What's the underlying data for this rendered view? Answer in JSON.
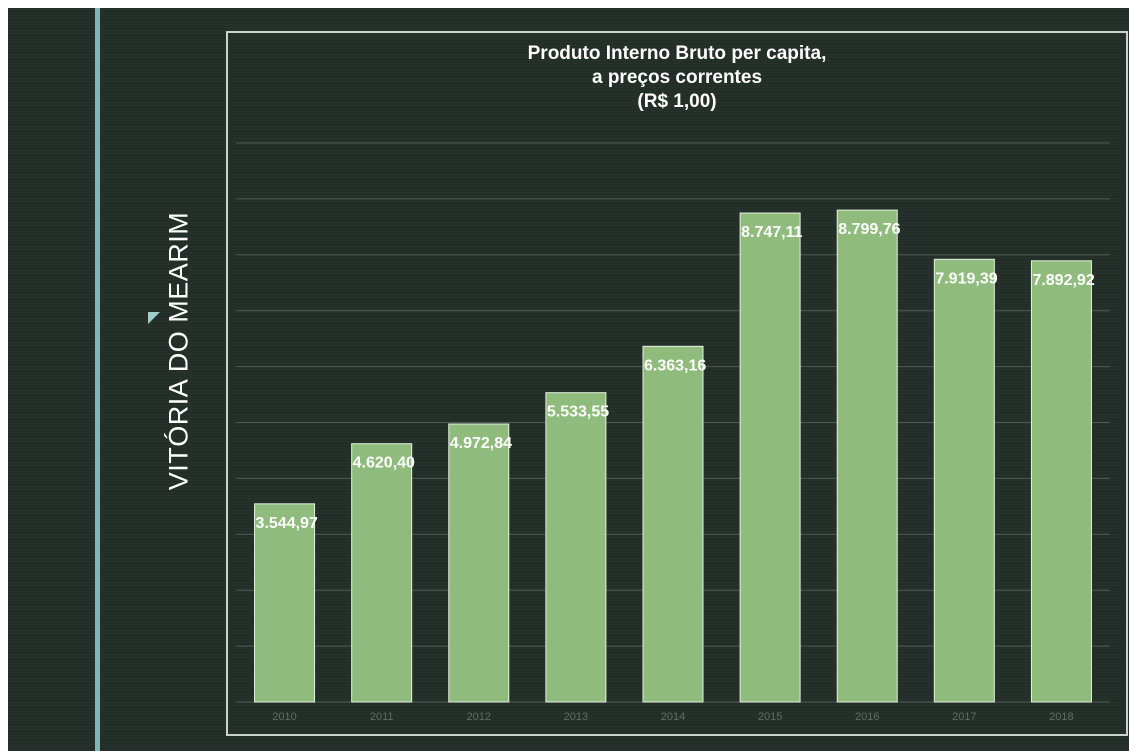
{
  "side_title": "VITÓRIA DO MEARIM",
  "chart_data": {
    "type": "bar",
    "title_lines": [
      "Produto Interno Bruto per capita,",
      "a preços correntes",
      "(R$ 1,00)"
    ],
    "categories": [
      "2010",
      "2011",
      "2012",
      "2013",
      "2014",
      "2015",
      "2016",
      "2017",
      "2018"
    ],
    "values": [
      3544.97,
      4620.4,
      4972.84,
      5533.55,
      6363.16,
      8747.11,
      8799.76,
      7919.39,
      7892.92
    ],
    "value_labels": [
      "3.544,97",
      "4.620,40",
      "4.972,84",
      "5.533,55",
      "6.363,16",
      "8.747,11",
      "8.799,76",
      "7.919,39",
      "7.892,92"
    ],
    "ylim": [
      0,
      10000
    ],
    "grid": true,
    "bar_color": "#8fbc7c",
    "grid_color": "#5a6a62",
    "legend": "none"
  }
}
